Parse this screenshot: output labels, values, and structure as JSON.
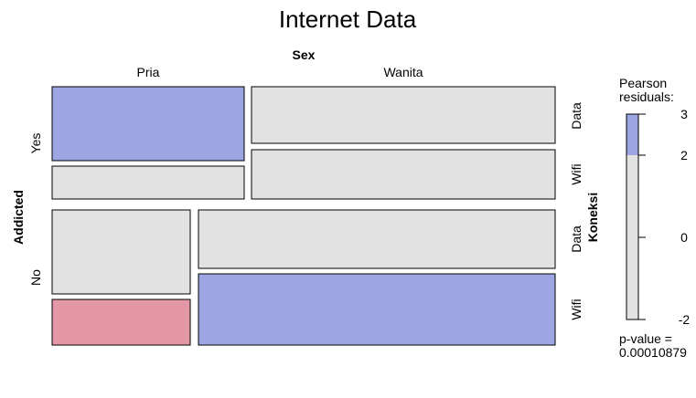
{
  "chart_data": {
    "type": "mosaic",
    "title": "Internet Data",
    "column_variable": "Sex",
    "row_variable": "Addicted",
    "sub_variable": "Koneksi",
    "columns": [
      "Pria",
      "Wanita"
    ],
    "rows": [
      "Yes",
      "No"
    ],
    "sub_rows": [
      "Data",
      "Wifi"
    ],
    "cells": [
      {
        "addicted": "Yes",
        "sex": "Pria",
        "koneksi": "Data",
        "shade": "positive"
      },
      {
        "addicted": "Yes",
        "sex": "Pria",
        "koneksi": "Wifi",
        "shade": "none"
      },
      {
        "addicted": "Yes",
        "sex": "Wanita",
        "koneksi": "Data",
        "shade": "none"
      },
      {
        "addicted": "Yes",
        "sex": "Wanita",
        "koneksi": "Wifi",
        "shade": "none"
      },
      {
        "addicted": "No",
        "sex": "Pria",
        "koneksi": "Data",
        "shade": "none"
      },
      {
        "addicted": "No",
        "sex": "Pria",
        "koneksi": "Wifi",
        "shade": "negative"
      },
      {
        "addicted": "No",
        "sex": "Wanita",
        "koneksi": "Data",
        "shade": "none"
      },
      {
        "addicted": "No",
        "sex": "Wanita",
        "koneksi": "Wifi",
        "shade": "positive"
      }
    ],
    "legend": {
      "title_line1": "Pearson",
      "title_line2": "residuals:",
      "range": [
        -2,
        3
      ],
      "ticks": [
        "3",
        "2",
        "0",
        "-2"
      ],
      "tick_values": [
        3,
        2,
        0,
        -2
      ],
      "positive_threshold": 2,
      "negative_threshold": -2,
      "p_value_label": "p-value =",
      "p_value": "0.00010879"
    },
    "colors": {
      "positive": "#9da6e2",
      "negative": "#e497a6",
      "neutral": "#e2e2e2",
      "neutral_legend": "#e2e2e2"
    }
  }
}
